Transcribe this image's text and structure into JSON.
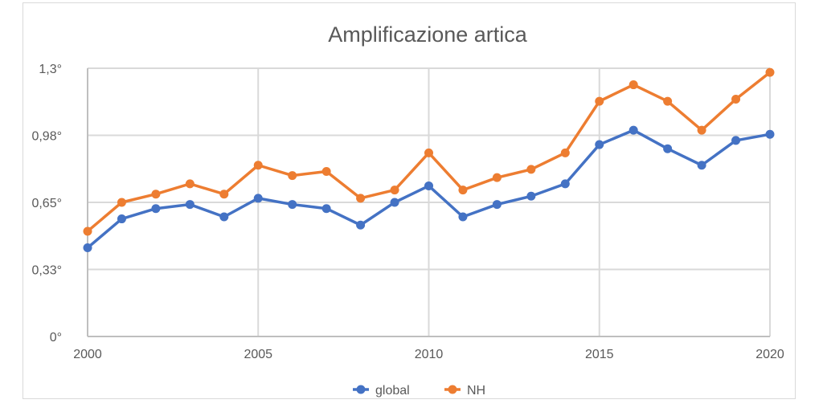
{
  "chart_data": {
    "type": "line",
    "title": "Amplificazione artica",
    "xlabel": "",
    "ylabel": "",
    "x": [
      2000,
      2001,
      2002,
      2003,
      2004,
      2005,
      2006,
      2007,
      2008,
      2009,
      2010,
      2011,
      2012,
      2013,
      2014,
      2015,
      2016,
      2017,
      2018,
      2019,
      2020
    ],
    "x_ticks": [
      "2000",
      "2005",
      "2010",
      "2015",
      "2020"
    ],
    "y_ticks": [
      {
        "value": 0,
        "label": "0°"
      },
      {
        "value": 0.325,
        "label": "0,33°"
      },
      {
        "value": 0.65,
        "label": "0,65°"
      },
      {
        "value": 0.975,
        "label": "0,98°"
      },
      {
        "value": 1.3,
        "label": "1,3°"
      }
    ],
    "ylim": [
      0,
      1.3
    ],
    "xlim": [
      2000,
      2020
    ],
    "grid": true,
    "legend_position": "bottom",
    "series": [
      {
        "name": "global",
        "color": "#4472c4",
        "values": [
          0.43,
          0.57,
          0.62,
          0.64,
          0.58,
          0.67,
          0.64,
          0.62,
          0.54,
          0.65,
          0.73,
          0.58,
          0.64,
          0.68,
          0.74,
          0.93,
          1.0,
          0.91,
          0.83,
          0.95,
          0.98
        ]
      },
      {
        "name": "NH",
        "color": "#ed7d31",
        "values": [
          0.51,
          0.65,
          0.69,
          0.74,
          0.69,
          0.83,
          0.78,
          0.8,
          0.67,
          0.71,
          0.89,
          0.71,
          0.77,
          0.81,
          0.89,
          1.14,
          1.22,
          1.14,
          1.0,
          1.15,
          1.28
        ]
      }
    ]
  }
}
